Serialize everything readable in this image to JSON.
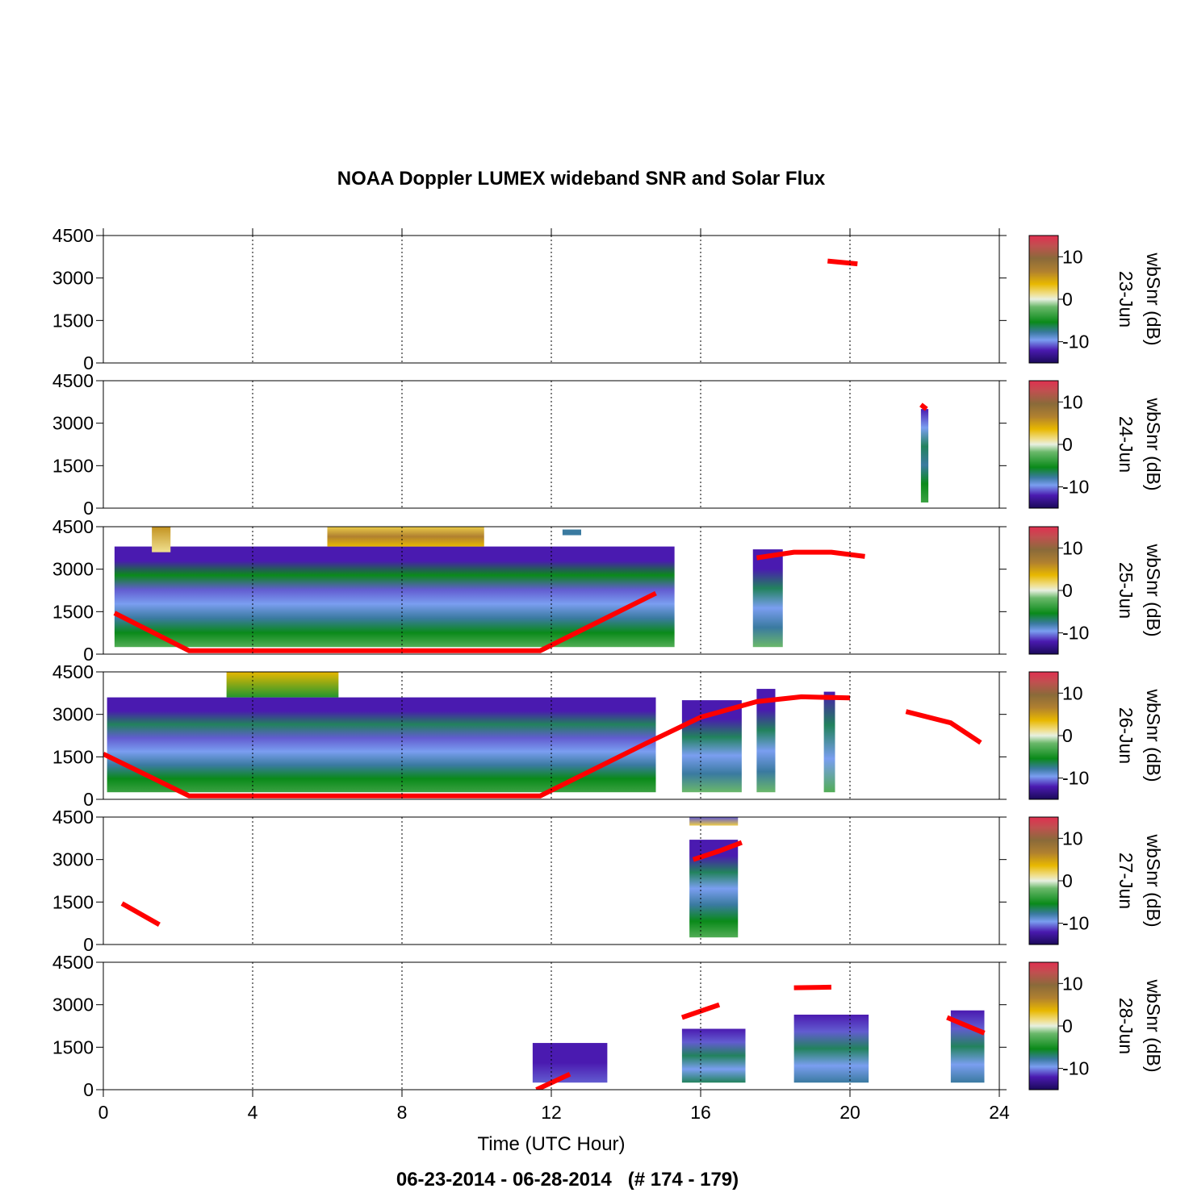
{
  "chart_data": {
    "type": "heatmap",
    "title": "NOAA Doppler LUMEX wideband SNR and Solar Flux",
    "xlabel": "Time (UTC Hour)",
    "footer": "06-23-2014 - 06-28-2014   (# 174 - 179)",
    "xlim": [
      0,
      24
    ],
    "xticks": [
      0,
      4,
      8,
      12,
      16,
      20,
      24
    ],
    "ylim": [
      0,
      4500
    ],
    "yticks": [
      0,
      1500,
      3000,
      4500
    ],
    "grid": "vertical-dotted",
    "colorbar": {
      "label": "wbSnr (dB)",
      "range": [
        -15,
        15
      ],
      "ticks": [
        -10,
        0,
        10
      ],
      "colors": [
        "#1a0a5a",
        "#4a1ab0",
        "#7a9ef0",
        "#0a8a1a",
        "#c8e6c8",
        "#e8b800",
        "#8a6a3a",
        "#e03050"
      ]
    },
    "line_color": "#ff0000",
    "panels": [
      {
        "day": "23-Jun",
        "snr_blocks": [],
        "solar_flux": [
          [
            [
              19.4,
              3600
            ],
            [
              20.2,
              3500
            ]
          ]
        ]
      },
      {
        "day": "24-Jun",
        "snr_blocks": [
          {
            "x0": 21.9,
            "x1": 22.1,
            "y0": 200,
            "y1": 3500,
            "profile": [
              -6,
              -8,
              -10,
              -9,
              -11,
              -13
            ]
          }
        ],
        "solar_flux": [
          [
            [
              21.9,
              3650
            ],
            [
              22.05,
              3500
            ]
          ]
        ]
      },
      {
        "day": "25-Jun",
        "snr_blocks": [
          {
            "x0": 0.3,
            "x1": 15.3,
            "y0": 250,
            "y1": 3800,
            "profile": [
              -5,
              -8,
              -10,
              -11,
              -12,
              -8,
              -13,
              -13
            ]
          },
          {
            "x0": 6.0,
            "x1": 10.2,
            "y0": 3800,
            "y1": 4500,
            "profile": [
              4,
              7,
              3
            ]
          },
          {
            "x0": 1.3,
            "x1": 1.8,
            "y0": 3600,
            "y1": 4500,
            "profile": [
              2,
              6
            ]
          },
          {
            "x0": 12.3,
            "x1": 12.8,
            "y0": 4200,
            "y1": 4400,
            "profile": [
              -10
            ]
          },
          {
            "x0": 17.4,
            "x1": 18.2,
            "y0": 250,
            "y1": 3700,
            "profile": [
              -4,
              -10,
              -11,
              -9,
              -13,
              -13
            ]
          }
        ],
        "solar_flux": [
          [
            [
              0.3,
              1450
            ],
            [
              2.3,
              120
            ],
            [
              11.7,
              120
            ],
            [
              14.8,
              2150
            ]
          ],
          [
            [
              17.5,
              3400
            ],
            [
              18.5,
              3600
            ],
            [
              19.5,
              3600
            ],
            [
              20.4,
              3450
            ]
          ]
        ]
      },
      {
        "day": "26-Jun",
        "snr_blocks": [
          {
            "x0": 0.1,
            "x1": 14.8,
            "y0": 250,
            "y1": 3600,
            "profile": [
              -6,
              -8,
              -10,
              -11,
              -12,
              -9,
              -13,
              -13
            ]
          },
          {
            "x0": 3.3,
            "x1": 6.3,
            "y0": 3600,
            "y1": 4500,
            "profile": [
              -7,
              4
            ]
          },
          {
            "x0": 15.5,
            "x1": 17.1,
            "y0": 250,
            "y1": 3500,
            "profile": [
              -4,
              -10,
              -11,
              -9,
              -13,
              -13
            ]
          },
          {
            "x0": 17.5,
            "x1": 18.0,
            "y0": 250,
            "y1": 3900,
            "profile": [
              -4,
              -10,
              -11,
              -9,
              -13,
              -13
            ]
          },
          {
            "x0": 19.3,
            "x1": 19.6,
            "y0": 250,
            "y1": 3800,
            "profile": [
              -5,
              -11,
              -9,
              -13
            ]
          }
        ],
        "solar_flux": [
          [
            [
              0.0,
              1600
            ],
            [
              2.3,
              120
            ],
            [
              11.7,
              120
            ],
            [
              14.5,
              1950
            ],
            [
              16.0,
              2900
            ],
            [
              17.5,
              3450
            ],
            [
              18.7,
              3620
            ],
            [
              20.0,
              3580
            ]
          ],
          [
            [
              21.5,
              3100
            ],
            [
              22.7,
              2700
            ],
            [
              23.5,
              2000
            ]
          ]
        ]
      },
      {
        "day": "27-Jun",
        "snr_blocks": [
          {
            "x0": 15.7,
            "x1": 17.0,
            "y0": 250,
            "y1": 3700,
            "profile": [
              -5,
              -8,
              -10,
              -11,
              -9,
              -13,
              -13
            ]
          },
          {
            "x0": 15.7,
            "x1": 17.0,
            "y0": 4200,
            "y1": 4500,
            "profile": [
              3,
              -12
            ]
          }
        ],
        "solar_flux": [
          [
            [
              0.5,
              1450
            ],
            [
              1.5,
              700
            ]
          ],
          [
            [
              15.8,
              3000
            ],
            [
              16.5,
              3300
            ],
            [
              17.1,
              3600
            ]
          ]
        ]
      },
      {
        "day": "28-Jun",
        "snr_blocks": [
          {
            "x0": 11.5,
            "x1": 13.5,
            "y0": 250,
            "y1": 1650,
            "profile": [
              -12,
              -13,
              -13
            ]
          },
          {
            "x0": 15.5,
            "x1": 17.2,
            "y0": 250,
            "y1": 2150,
            "profile": [
              -9,
              -11,
              -9,
              -12,
              -13
            ]
          },
          {
            "x0": 18.5,
            "x1": 20.5,
            "y0": 250,
            "y1": 2650,
            "profile": [
              -10,
              -11,
              -9,
              -12,
              -13
            ]
          },
          {
            "x0": 22.7,
            "x1": 23.6,
            "y0": 250,
            "y1": 2800,
            "profile": [
              -10,
              -11,
              -9,
              -12,
              -13
            ]
          }
        ],
        "solar_flux": [
          [
            [
              11.6,
              0
            ],
            [
              12.5,
              550
            ]
          ],
          [
            [
              15.5,
              2550
            ],
            [
              16.5,
              3000
            ]
          ],
          [
            [
              18.5,
              3600
            ],
            [
              19.5,
              3620
            ]
          ],
          [
            [
              22.6,
              2550
            ],
            [
              23.6,
              2000
            ]
          ]
        ]
      }
    ]
  }
}
